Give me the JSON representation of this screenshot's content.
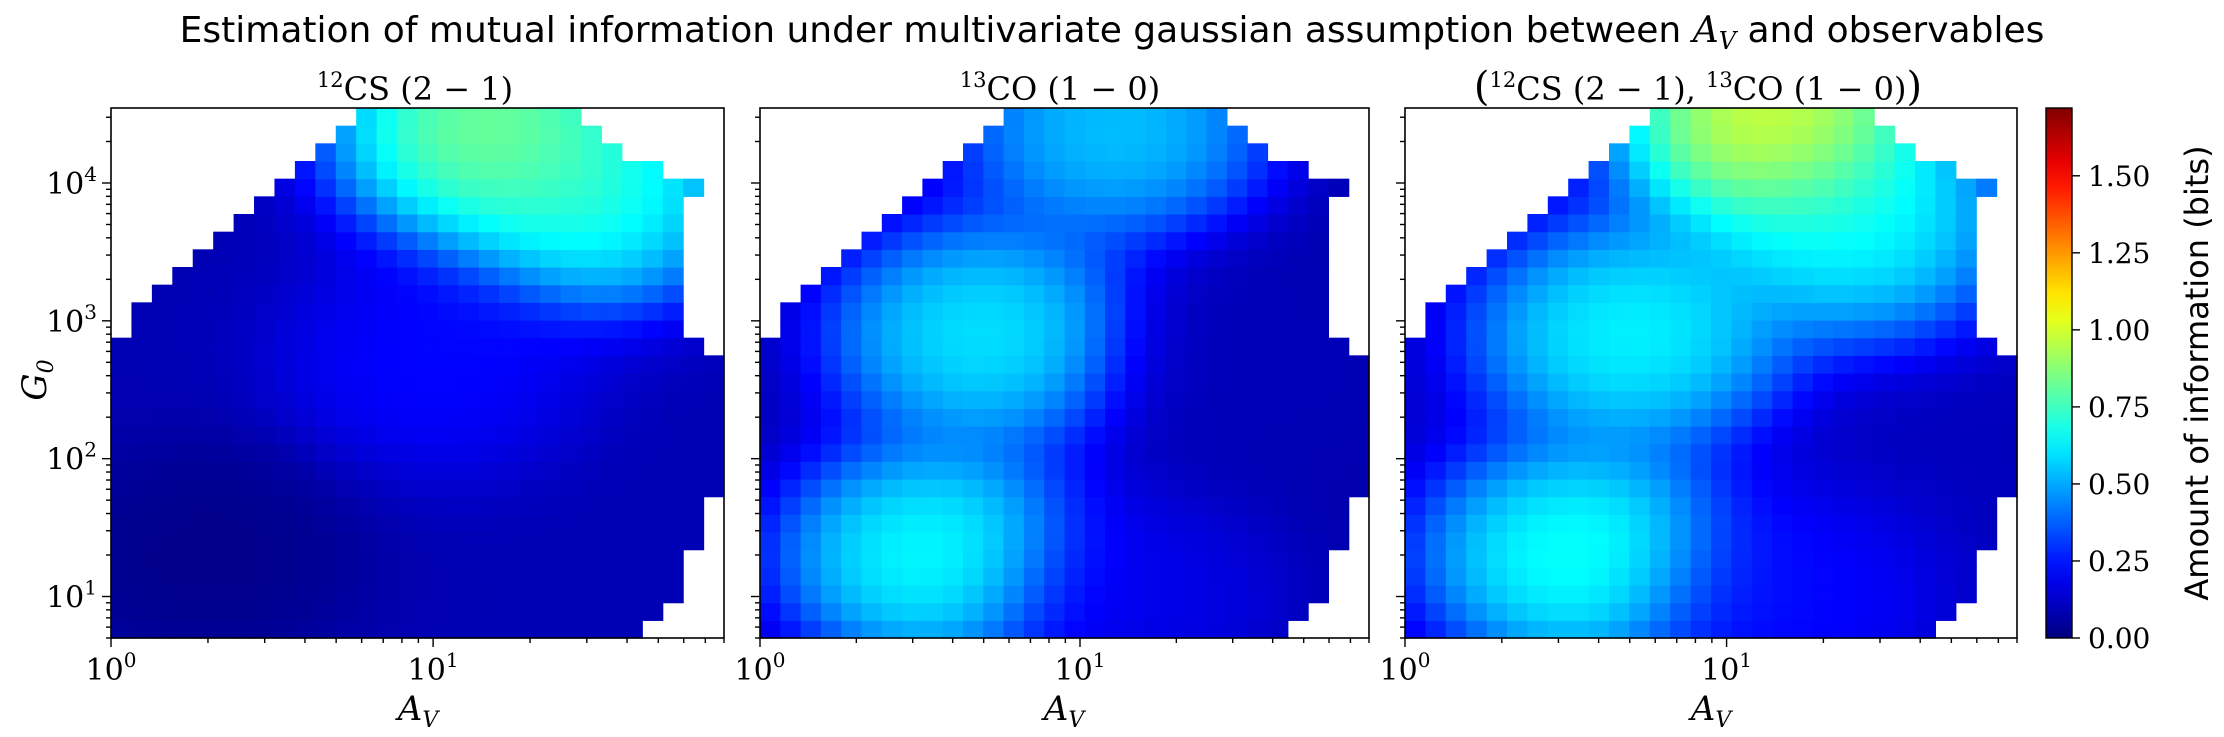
{
  "figure": {
    "title_prefix": "Estimation of mutual information under multivariate gaussian assumption between ",
    "title_var": "A",
    "title_var_sub": "V",
    "title_suffix": " and observables"
  },
  "axes": {
    "ylabel": "G",
    "ylabel_sub": "0",
    "xlabel": "A",
    "xlabel_sub": "V",
    "xlim": [
      1,
      80
    ],
    "ylim": [
      5,
      35000
    ],
    "x_ticks": [
      {
        "value": 1,
        "base": "10",
        "exp": "0"
      },
      {
        "value": 10,
        "base": "10",
        "exp": "1"
      }
    ],
    "y_ticks": [
      {
        "value": 10,
        "base": "10",
        "exp": "1"
      },
      {
        "value": 100,
        "base": "10",
        "exp": "2"
      },
      {
        "value": 1000,
        "base": "10",
        "exp": "3"
      },
      {
        "value": 10000,
        "base": "10",
        "exp": "4"
      }
    ]
  },
  "panels": [
    {
      "sup": "12",
      "body": "CS (2 − 1)",
      "open": "",
      "close": ""
    },
    {
      "sup": "13",
      "body": "CO (1 − 0)",
      "open": "",
      "close": ""
    },
    {
      "sup1": "12",
      "body1": "CS (2 − 1), ",
      "sup2": "13",
      "body2": "CO (1 − 0)",
      "open": "(",
      "close": ")"
    }
  ],
  "colorbar": {
    "label": "Amount of information (bits)",
    "range": [
      0,
      1.72
    ],
    "ticks": [
      "0.00",
      "0.25",
      "0.50",
      "0.75",
      "1.00",
      "1.25",
      "1.50"
    ],
    "tick_values": [
      0,
      0.25,
      0.5,
      0.75,
      1.0,
      1.25,
      1.5
    ],
    "colormap": "jet"
  },
  "chart_data": {
    "type": "heatmap",
    "x_scale": "log",
    "y_scale": "log",
    "xlabel": "A_V",
    "ylabel": "G_0",
    "value_label": "Amount of information (bits)",
    "grid": {
      "nx": 30,
      "ny": 30
    },
    "mask_boundary": {
      "upper_G0_edge_by_AV": [
        [
          1,
          500
        ],
        [
          1.25,
          1200
        ],
        [
          1.6,
          2500
        ],
        [
          2,
          4000
        ],
        [
          3,
          8000
        ],
        [
          4,
          15000
        ],
        [
          6,
          35000
        ],
        [
          25,
          35000
        ],
        [
          40,
          15000
        ],
        [
          60,
          10000
        ],
        [
          80,
          8000
        ]
      ],
      "right_AV_edge_by_G0": [
        [
          5,
          45
        ],
        [
          10,
          55
        ],
        [
          30,
          70
        ],
        [
          100,
          80
        ],
        [
          500,
          80
        ],
        [
          1000,
          60
        ],
        [
          3000,
          60
        ],
        [
          10000,
          65
        ],
        [
          35000,
          30
        ]
      ]
    },
    "panels": [
      {
        "name": "12CS (2-1)",
        "value_range": [
          0,
          1.1
        ],
        "features": [
          {
            "AV": 15,
            "G0": 25000,
            "value": 1.0
          },
          {
            "AV": 30,
            "G0": 8000,
            "value": 0.8
          },
          {
            "AV": 10,
            "G0": 500,
            "value": 0.25
          },
          {
            "AV": 2,
            "G0": 20,
            "value": 0.0
          }
        ]
      },
      {
        "name": "13CO (1-0)",
        "value_range": [
          0,
          0.9
        ],
        "features": [
          {
            "AV": 3.5,
            "G0": 20,
            "value": 0.78
          },
          {
            "AV": 5,
            "G0": 800,
            "value": 0.72
          },
          {
            "AV": 13,
            "G0": 25000,
            "value": 0.65
          },
          {
            "AV": 15,
            "G0": 10,
            "value": 0.2
          },
          {
            "AV": 35,
            "G0": 500,
            "value": 0.1
          }
        ]
      },
      {
        "name": "(12CS (2-1), 13CO (1-0))",
        "value_range": [
          0,
          1.25
        ],
        "features": [
          {
            "AV": 14,
            "G0": 28000,
            "value": 1.2
          },
          {
            "AV": 3.5,
            "G0": 20,
            "value": 0.8
          },
          {
            "AV": 5,
            "G0": 800,
            "value": 0.75
          },
          {
            "AV": 25,
            "G0": 5000,
            "value": 0.75
          },
          {
            "AV": 15,
            "G0": 10,
            "value": 0.25
          }
        ]
      }
    ]
  }
}
